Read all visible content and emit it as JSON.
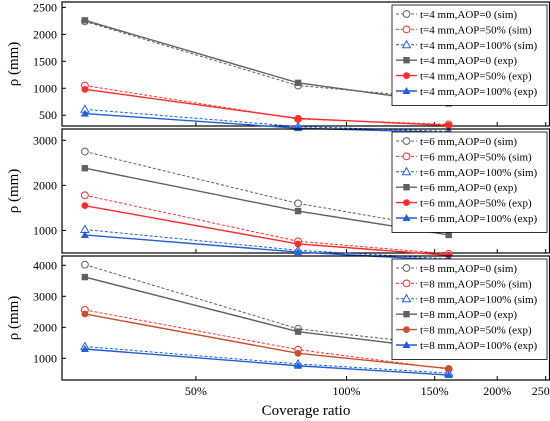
{
  "chart_data": [
    {
      "type": "line",
      "ylabel": "ρ (mm)",
      "ylim": [
        300,
        2600
      ],
      "yticks": [
        500,
        1000,
        1500,
        2000,
        2500
      ],
      "x": [
        0.3,
        0.8,
        1.6
      ],
      "series": [
        {
          "name": "t=4 mm,AOP=0 (sim)",
          "values": [
            2240,
            1050,
            800
          ],
          "color": "#606060",
          "dashed": true,
          "marker": "open-circle"
        },
        {
          "name": "t=4 mm,AOP=50% (sim)",
          "values": [
            1050,
            430,
            330
          ],
          "color": "#ff2a2a",
          "dashed": true,
          "marker": "open-circle"
        },
        {
          "name": "t=4 mm,AOP=100% (sim)",
          "values": [
            610,
            290,
            200
          ],
          "color": "#1f5fd8",
          "dashed": true,
          "marker": "open-triangle"
        },
        {
          "name": "t=4 mm,AOP=0 (exp)",
          "values": [
            2260,
            1100,
            720
          ],
          "color": "#606060",
          "dashed": false,
          "marker": "square"
        },
        {
          "name": "t=4 mm,AOP=50% (exp)",
          "values": [
            980,
            440,
            310
          ],
          "color": "#ff2a2a",
          "dashed": false,
          "marker": "circle"
        },
        {
          "name": "t=4 mm,AOP=100% (exp)",
          "values": [
            530,
            260,
            180
          ],
          "color": "#1f5fd8",
          "dashed": false,
          "marker": "triangle"
        }
      ]
    },
    {
      "type": "line",
      "ylabel": "ρ (mm)",
      "ylim": [
        500,
        3250
      ],
      "yticks": [
        1000,
        2000,
        3000
      ],
      "x": [
        0.3,
        0.8,
        1.6
      ],
      "series": [
        {
          "name": "t=6 mm,AOP=0 (sim)",
          "values": [
            2750,
            1600,
            1020
          ],
          "color": "#606060",
          "dashed": true,
          "marker": "open-circle"
        },
        {
          "name": "t=6 mm,AOP=50% (sim)",
          "values": [
            1780,
            760,
            480
          ],
          "color": "#ff2a2a",
          "dashed": true,
          "marker": "open-circle"
        },
        {
          "name": "t=6 mm,AOP=100% (sim)",
          "values": [
            1020,
            560,
            370
          ],
          "color": "#1f5fd8",
          "dashed": true,
          "marker": "open-triangle"
        },
        {
          "name": "t=6 mm,AOP=0 (exp)",
          "values": [
            2380,
            1430,
            900
          ],
          "color": "#606060",
          "dashed": false,
          "marker": "square"
        },
        {
          "name": "t=6 mm,AOP=50% (exp)",
          "values": [
            1550,
            700,
            450
          ],
          "color": "#ff2a2a",
          "dashed": false,
          "marker": "circle"
        },
        {
          "name": "t=6 mm,AOP=100% (exp)",
          "values": [
            900,
            520,
            340
          ],
          "color": "#1f5fd8",
          "dashed": false,
          "marker": "triangle"
        }
      ]
    },
    {
      "type": "line",
      "ylabel": "ρ (mm)",
      "ylim": [
        300,
        4300
      ],
      "yticks": [
        1000,
        2000,
        3000,
        4000
      ],
      "x": [
        0.3,
        0.8,
        1.6
      ],
      "xlabel": "Coverage ratio",
      "xscale": "log",
      "xlim": [
        0.27,
        2.55
      ],
      "xticks": [
        0.5,
        1.0,
        1.5,
        2.0,
        2.5
      ],
      "xticklabels": [
        "50%",
        "100%",
        "150%",
        "200%",
        "250%"
      ],
      "series": [
        {
          "name": "t=8 mm,AOP=0 (sim)",
          "values": [
            4020,
            1950,
            1400
          ],
          "color": "#606060",
          "dashed": true,
          "marker": "open-circle"
        },
        {
          "name": "t=8 mm,AOP=50% (sim)",
          "values": [
            2560,
            1280,
            650
          ],
          "color": "#ff2a2a",
          "dashed": true,
          "marker": "open-circle"
        },
        {
          "name": "t=8 mm,AOP=100% (sim)",
          "values": [
            1380,
            820,
            520
          ],
          "color": "#1f5fd8",
          "dashed": true,
          "marker": "open-triangle"
        },
        {
          "name": "t=8 mm,AOP=0 (exp)",
          "values": [
            3620,
            1860,
            1270
          ],
          "color": "#606060",
          "dashed": false,
          "marker": "square"
        },
        {
          "name": "t=8 mm,AOP=50% (exp)",
          "values": [
            2430,
            1160,
            670
          ],
          "color": "#c8502a",
          "dashed": false,
          "marker": "circle"
        },
        {
          "name": "t=8 mm,AOP=100% (exp)",
          "values": [
            1300,
            760,
            460
          ],
          "color": "#1f5fd8",
          "dashed": false,
          "marker": "triangle"
        }
      ]
    }
  ]
}
